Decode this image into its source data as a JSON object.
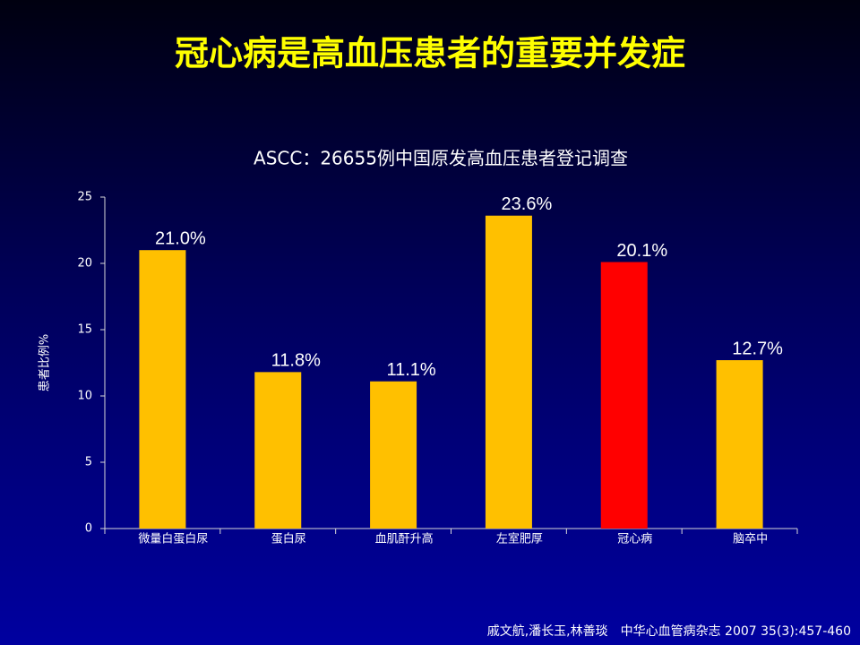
{
  "chart_data": {
    "type": "bar",
    "title": "冠心病是高血压患者的重要并发症",
    "subtitle": "ASCC：26655例中国原发高血压患者登记调查",
    "y_label": "患者比例%",
    "categories": [
      "微量白蛋白尿",
      "蛋白尿",
      "血肌酐升高",
      "左室肥厚",
      "冠心病",
      "脑卒中"
    ],
    "values": [
      21.0,
      11.8,
      11.1,
      23.6,
      20.1,
      12.7
    ],
    "value_labels": [
      "21.0%",
      "11.8%",
      "11.1%",
      "23.6%",
      "20.1%",
      "12.7%"
    ],
    "colors": [
      "#ffc000",
      "#ffc000",
      "#ffc000",
      "#ffc000",
      "#ff0000",
      "#ffc000"
    ],
    "ylim": [
      0,
      25
    ],
    "yticks": [
      0,
      5,
      10,
      15,
      20,
      25
    ],
    "grid": false,
    "source": "戚文航,潘长玉,林善琰　中华心血管病杂志 2007 35(3):457-460"
  }
}
